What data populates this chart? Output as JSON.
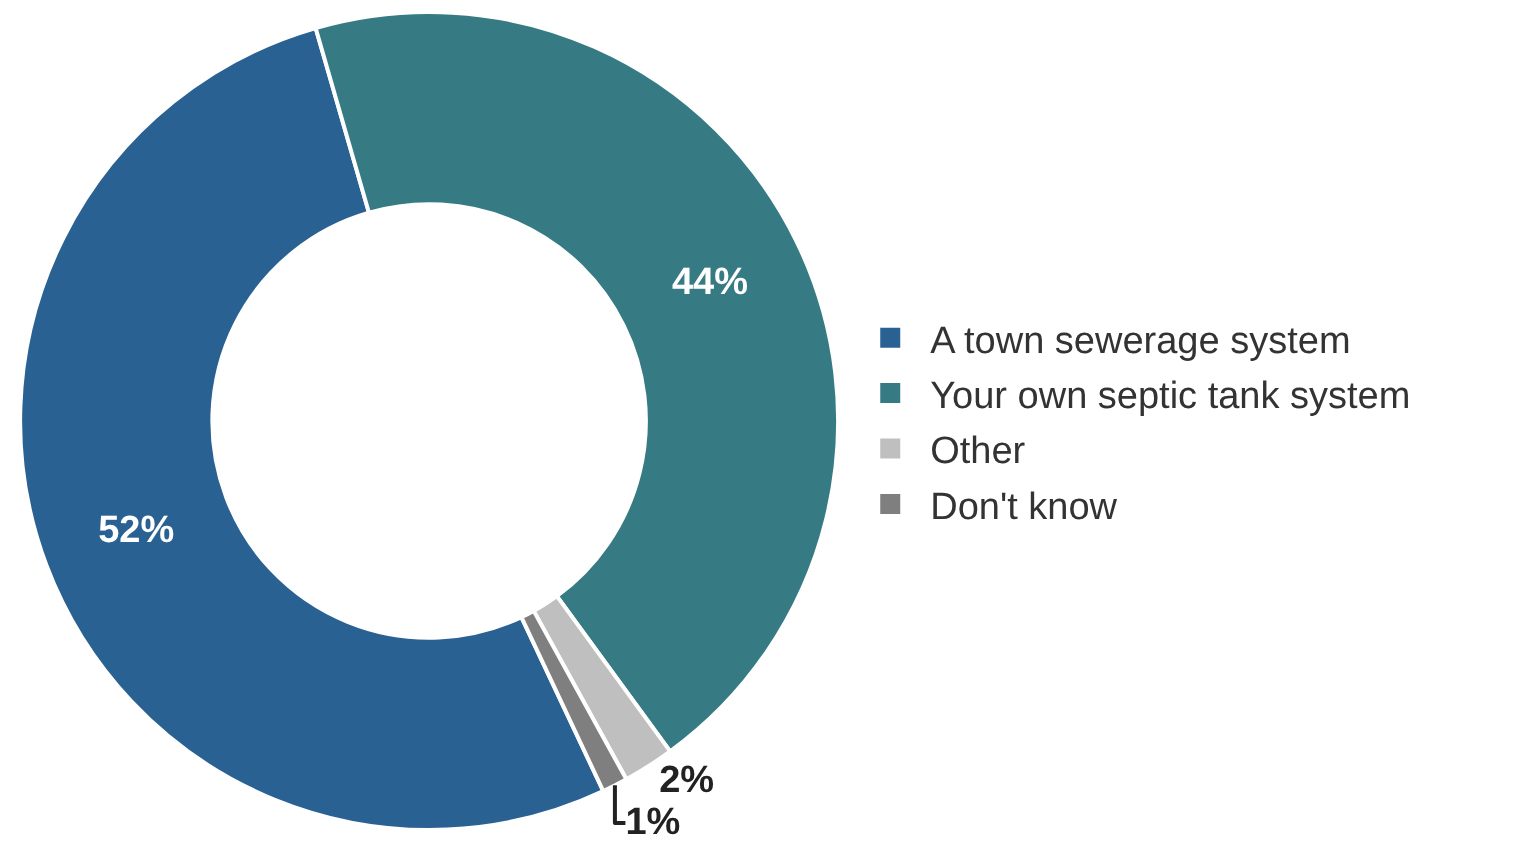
{
  "chart_data": {
    "type": "donut",
    "categories": [
      "A town sewerage system",
      "Your own septic tank system",
      "Other",
      "Don't know"
    ],
    "values": [
      52,
      44,
      2,
      1
    ],
    "colors": [
      "#2a6193",
      "#367b84",
      "#bfbfbf",
      "#7f7f7f"
    ],
    "value_labels": [
      "52%",
      "44%",
      "2%",
      "1%"
    ],
    "legend": "right"
  }
}
